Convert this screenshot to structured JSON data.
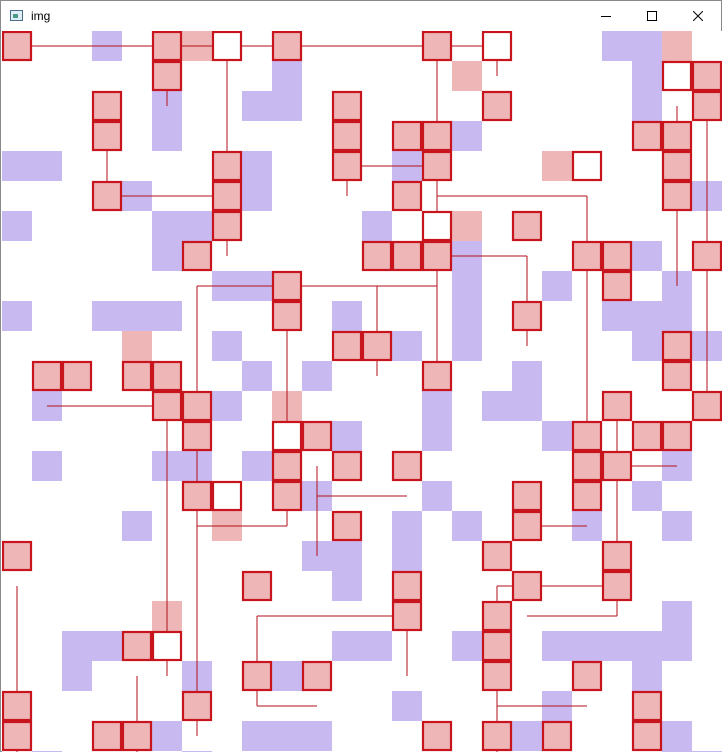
{
  "window": {
    "title": "img"
  },
  "controls": {
    "minimize": "minimize-icon",
    "maximize": "maximize-icon",
    "close": "close-icon"
  },
  "colors": {
    "lavender": "#c8baf0",
    "pink": "#efb6b8",
    "outline": "#c8141c",
    "path": "#b01018"
  }
}
